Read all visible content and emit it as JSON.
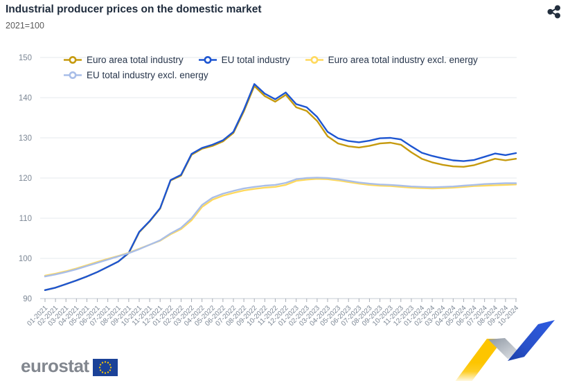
{
  "header": {
    "title": "Industrial producer prices on the domestic market",
    "subtitle": "2021=100"
  },
  "icons": {
    "share": "share-nodes-icon",
    "flag": "eu-flag",
    "ribbon": "eurostat-ribbon-graphic"
  },
  "chart_data": {
    "type": "line",
    "title": "Industrial producer prices on the domestic market",
    "subtitle": "2021=100",
    "ylim": [
      90,
      150
    ],
    "yticks": [
      90,
      100,
      110,
      120,
      130,
      140,
      150
    ],
    "grid": true,
    "legend_position": "top-left",
    "x": [
      "01-2021",
      "02-2021",
      "03-2021",
      "04-2021",
      "05-2021",
      "06-2021",
      "07-2021",
      "08-2021",
      "09-2021",
      "10-2021",
      "11-2021",
      "12-2021",
      "01-2022",
      "02-2022",
      "03-2022",
      "04-2022",
      "05-2022",
      "06-2022",
      "07-2022",
      "08-2022",
      "09-2022",
      "10-2022",
      "11-2022",
      "12-2022",
      "01-2023",
      "02-2023",
      "03-2023",
      "04-2023",
      "05-2023",
      "06-2023",
      "07-2023",
      "08-2023",
      "09-2023",
      "10-2023",
      "11-2023",
      "12-2023",
      "01-2024",
      "02-2024",
      "03-2024",
      "04-2024",
      "05-2024",
      "06-2024",
      "07-2024",
      "08-2024",
      "09-2024",
      "10-2024"
    ],
    "series": [
      {
        "name": "Euro area total industry",
        "color": "#C69A0E",
        "values": [
          92.1,
          92.7,
          93.6,
          94.5,
          95.5,
          96.6,
          97.9,
          99.2,
          101.3,
          106.5,
          109.2,
          112.4,
          119.4,
          120.6,
          125.8,
          127.3,
          128.0,
          129.1,
          131.2,
          136.6,
          142.9,
          140.4,
          139.0,
          140.7,
          137.6,
          136.7,
          134.2,
          130.4,
          128.6,
          127.9,
          127.6,
          128.0,
          128.6,
          128.8,
          128.3,
          126.4,
          124.8,
          123.9,
          123.3,
          122.9,
          122.8,
          123.2,
          124.0,
          124.8,
          124.4,
          124.8
        ]
      },
      {
        "name": "EU total industry",
        "color": "#1D55D1",
        "values": [
          92.1,
          92.7,
          93.6,
          94.5,
          95.5,
          96.6,
          97.9,
          99.2,
          101.4,
          106.6,
          109.3,
          112.5,
          119.5,
          120.8,
          126.0,
          127.5,
          128.3,
          129.4,
          131.5,
          137.0,
          143.4,
          141.0,
          139.6,
          141.3,
          138.4,
          137.6,
          135.2,
          131.5,
          129.9,
          129.2,
          128.9,
          129.3,
          129.9,
          130.0,
          129.6,
          127.9,
          126.3,
          125.5,
          124.9,
          124.4,
          124.2,
          124.5,
          125.3,
          126.1,
          125.7,
          126.2
        ]
      },
      {
        "name": "Euro area total industry excl. energy",
        "color": "#FFD95E",
        "values": [
          95.7,
          96.2,
          96.8,
          97.5,
          98.3,
          99.1,
          99.9,
          100.6,
          101.4,
          102.4,
          103.4,
          104.4,
          106.0,
          107.3,
          109.5,
          112.8,
          114.6,
          115.6,
          116.3,
          116.9,
          117.3,
          117.6,
          117.8,
          118.3,
          119.3,
          119.6,
          119.8,
          119.7,
          119.4,
          119.0,
          118.6,
          118.3,
          118.1,
          118.0,
          117.8,
          117.6,
          117.5,
          117.4,
          117.5,
          117.6,
          117.8,
          118.0,
          118.1,
          118.2,
          118.3,
          118.4
        ]
      },
      {
        "name": "EU total industry excl. energy",
        "color": "#A9BEE8",
        "values": [
          95.5,
          96.0,
          96.6,
          97.3,
          98.1,
          98.9,
          99.7,
          100.5,
          101.3,
          102.3,
          103.4,
          104.5,
          106.2,
          107.6,
          110.0,
          113.3,
          115.1,
          116.1,
          116.8,
          117.4,
          117.8,
          118.1,
          118.3,
          118.8,
          119.7,
          120.0,
          120.1,
          120.0,
          119.7,
          119.3,
          118.9,
          118.6,
          118.4,
          118.3,
          118.1,
          117.9,
          117.8,
          117.7,
          117.8,
          117.9,
          118.1,
          118.3,
          118.5,
          118.6,
          118.7,
          118.7
        ]
      }
    ]
  },
  "footer": {
    "logo_text": "eurostat",
    "brand_colors": {
      "eu_blue": "#1B4298",
      "eu_yellow": "#FFCC00",
      "ribbon_yellow": "#FDC500",
      "ribbon_gray": "#97A0AB",
      "ribbon_blue": "#2850C8"
    }
  }
}
